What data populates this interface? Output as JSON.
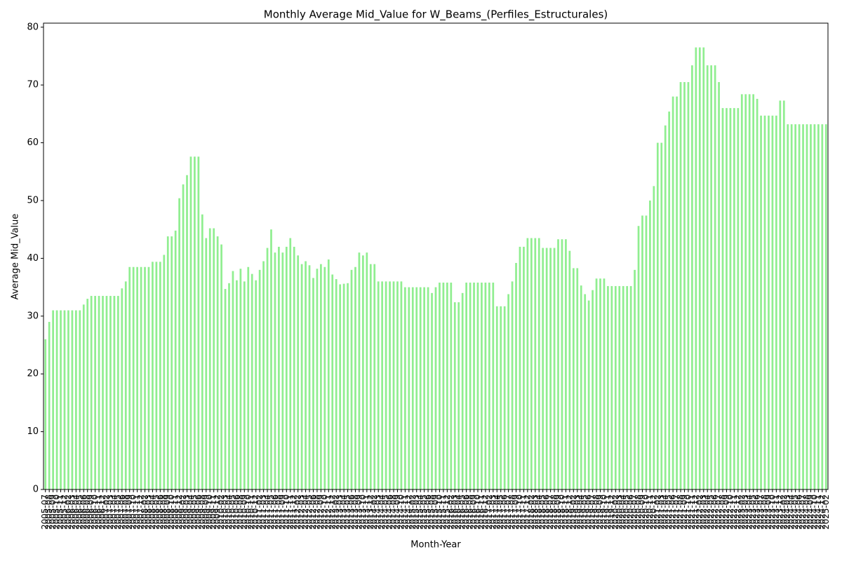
{
  "chart_data": {
    "type": "bar",
    "title": "Monthly Average Mid_Value for W_Beams_(Perfiles_Estructurales)",
    "x_label": "Month-Year",
    "y_label": "Average Mid_Value",
    "color": "#90ee90",
    "ylim": [
      0,
      80.7
    ],
    "yticks": [
      0,
      10,
      20,
      30,
      40,
      50,
      60,
      70,
      80
    ],
    "categories": [
      "2005-07",
      "2005-08",
      "2005-09",
      "2005-10",
      "2005-11",
      "2005-12",
      "2006-02",
      "2006-03",
      "2006-04",
      "2006-05",
      "2006-06",
      "2006-08",
      "2006-09",
      "2006-10",
      "2006-11",
      "2006-12",
      "2007-02",
      "2007-03",
      "2007-04",
      "2007-05",
      "2007-06",
      "2007-08",
      "2007-09",
      "2007-10",
      "2007-11",
      "2007-12",
      "2008-02",
      "2008-03",
      "2008-04",
      "2008-05",
      "2008-06",
      "2008-08",
      "2008-09",
      "2008-10",
      "2008-11",
      "2008-12",
      "2009-02",
      "2009-03",
      "2009-04",
      "2009-05",
      "2009-06",
      "2009-08",
      "2009-09",
      "2009-10",
      "2009-11",
      "2009-12",
      "2010-02",
      "2010-03",
      "2010-04",
      "2010-05",
      "2010-06",
      "2010-08",
      "2010-09",
      "2010-10",
      "2010-11",
      "2010-12",
      "2011-02",
      "2011-03",
      "2011-04",
      "2011-05",
      "2011-06",
      "2011-08",
      "2011-09",
      "2011-10",
      "2011-11",
      "2011-12",
      "2012-02",
      "2012-03",
      "2012-04",
      "2012-05",
      "2012-06",
      "2012-08",
      "2012-09",
      "2012-10",
      "2012-11",
      "2012-12",
      "2013-02",
      "2013-03",
      "2013-04",
      "2013-05",
      "2013-06",
      "2013-08",
      "2013-09",
      "2013-10",
      "2013-11",
      "2013-12",
      "2014-02",
      "2014-03",
      "2014-04",
      "2014-05",
      "2014-06",
      "2014-08",
      "2014-09",
      "2014-10",
      "2014-11",
      "2014-12",
      "2015-02",
      "2015-03",
      "2015-04",
      "2015-05",
      "2015-06",
      "2015-08",
      "2015-09",
      "2015-10",
      "2015-11",
      "2015-12",
      "2016-02",
      "2016-03",
      "2016-04",
      "2016-05",
      "2016-06",
      "2016-08",
      "2016-09",
      "2016-10",
      "2016-11",
      "2016-12",
      "2017-02",
      "2017-03",
      "2017-04",
      "2017-05",
      "2017-06",
      "2017-07",
      "2017-08",
      "2017-09",
      "2017-10",
      "2017-11",
      "2017-12",
      "2018-02",
      "2018-03",
      "2018-04",
      "2018-05",
      "2018-06",
      "2018-07",
      "2018-08",
      "2018-09",
      "2018-10",
      "2018-11",
      "2018-12",
      "2019-02",
      "2019-03",
      "2019-04",
      "2019-05",
      "2019-06",
      "2019-07",
      "2019-08",
      "2019-09",
      "2019-10",
      "2019-11",
      "2019-12",
      "2020-02",
      "2020-03",
      "2020-04",
      "2020-05",
      "2020-06",
      "2020-07",
      "2020-08",
      "2020-09",
      "2020-10",
      "2020-11",
      "2020-12",
      "2021-02",
      "2021-03",
      "2021-04",
      "2021-05",
      "2021-06",
      "2021-07",
      "2021-08",
      "2021-09",
      "2021-10",
      "2021-11",
      "2021-12",
      "2022-02",
      "2022-03",
      "2022-04",
      "2022-05",
      "2022-06",
      "2022-07",
      "2022-08",
      "2022-09",
      "2022-10",
      "2022-11",
      "2022-12",
      "2023-02",
      "2023-03",
      "2023-04",
      "2023-05",
      "2023-06",
      "2023-07",
      "2023-08",
      "2023-09",
      "2023-10",
      "2023-11",
      "2023-12",
      "2024-02",
      "2024-03",
      "2024-04",
      "2024-05",
      "2024-06",
      "2024-07",
      "2024-08",
      "2024-09",
      "2024-10",
      "2024-11",
      "2024-12",
      "2025-02"
    ],
    "values": [
      26,
      29,
      31,
      31,
      31,
      31,
      31,
      31,
      31,
      31,
      32,
      33,
      33.5,
      33.5,
      33.5,
      33.5,
      33.5,
      33.5,
      33.5,
      33.5,
      34.8,
      36,
      38.5,
      38.5,
      38.5,
      38.5,
      38.5,
      38.5,
      39.4,
      39.4,
      39.4,
      40.6,
      43.8,
      43.8,
      44.8,
      50.4,
      52.8,
      54.4,
      57.6,
      57.6,
      57.6,
      47.6,
      43.5,
      45.2,
      45.2,
      43.8,
      42.4,
      34.7,
      35.7,
      37.8,
      36.2,
      38.2,
      36,
      38.5,
      37.3,
      36.2,
      38,
      39.5,
      41.8,
      45,
      41,
      42,
      41,
      42,
      43.5,
      42,
      40.5,
      39,
      39.5,
      38.8,
      36.6,
      38.2,
      39,
      38.5,
      39.8,
      37.2,
      36.4,
      35.5,
      35.6,
      35.7,
      38,
      38.5,
      41,
      40.5,
      41,
      39,
      39,
      36,
      36,
      36,
      36,
      36,
      36,
      36,
      35,
      35,
      35,
      35,
      35,
      35,
      35,
      34,
      35,
      35.8,
      35.8,
      35.8,
      35.8,
      32.4,
      32.4,
      34,
      35.8,
      35.8,
      35.8,
      35.8,
      35.8,
      35.8,
      35.8,
      35.8,
      31.7,
      31.7,
      31.7,
      33.8,
      36,
      39.2,
      42,
      42,
      43.5,
      43.5,
      43.5,
      43.5,
      41.8,
      41.8,
      41.8,
      41.8,
      43.3,
      43.3,
      43.3,
      41.3,
      38.3,
      38.3,
      35.3,
      33.8,
      32.7,
      34.5,
      36.5,
      36.5,
      36.5,
      35.2,
      35.2,
      35.2,
      35.2,
      35.2,
      35.2,
      35.2,
      38,
      45.6,
      47.4,
      47.4,
      50,
      52.5,
      60,
      60,
      63,
      65.4,
      68,
      68,
      70.5,
      70.5,
      70.5,
      73.4,
      76.5,
      76.5,
      76.5,
      73.4,
      73.4,
      73.4,
      70.5,
      66,
      66,
      66,
      66,
      66,
      68.4,
      68.4,
      68.4,
      68.4,
      67.6,
      64.7,
      64.7,
      64.7,
      64.7,
      64.7,
      67.3,
      67.3,
      63.2,
      63.2,
      63.2,
      63.2,
      63.2,
      63.2,
      63.2,
      63.2,
      63.2,
      63.2,
      63.2
    ]
  }
}
